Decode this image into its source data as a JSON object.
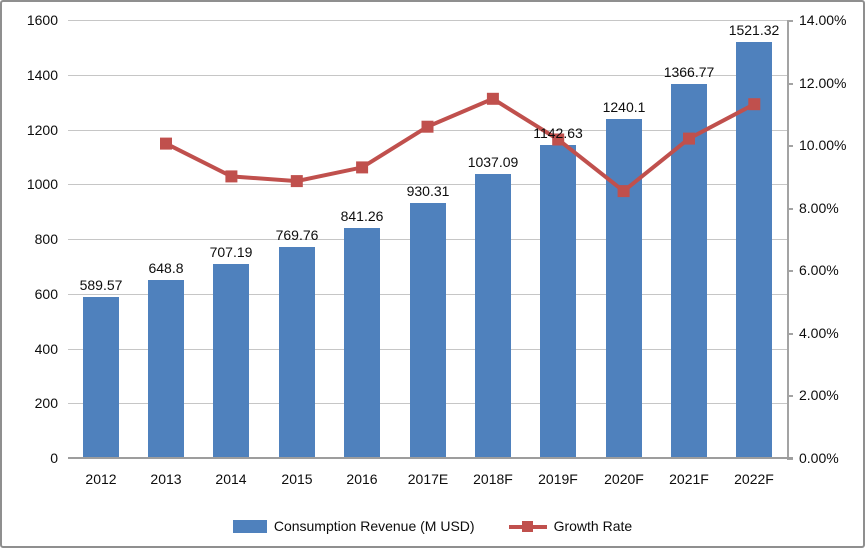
{
  "chart_data": {
    "type": "bar",
    "subtype": "bar-line-combo",
    "title": "",
    "categories": [
      "2012",
      "2013",
      "2014",
      "2015",
      "2016",
      "2017E",
      "2018F",
      "2019F",
      "2020F",
      "2021F",
      "2022F"
    ],
    "series": [
      {
        "name": "Consumption Revenue (M USD)",
        "type": "bar",
        "axis": "left",
        "color": "#4f81bd",
        "values": [
          589.57,
          648.8,
          707.19,
          769.76,
          841.26,
          930.31,
          1037.09,
          1142.63,
          1240.1,
          1366.77,
          1521.32
        ],
        "data_labels": [
          "589.57",
          "648.8",
          "707.19",
          "769.76",
          "841.26",
          "930.31",
          "1037.09",
          "1142.63",
          "1240.1",
          "1366.77",
          "1521.32"
        ]
      },
      {
        "name": "Growth Rate",
        "type": "line",
        "axis": "right",
        "color": "#c0504d",
        "values": [
          null,
          10.05,
          9.0,
          8.85,
          9.29,
          10.59,
          11.48,
          10.18,
          8.53,
          10.21,
          11.31
        ]
      }
    ],
    "left_axis": {
      "min": 0,
      "max": 1600,
      "step": 200,
      "tick_labels": [
        "0",
        "200",
        "400",
        "600",
        "800",
        "1000",
        "1200",
        "1400",
        "1600"
      ]
    },
    "right_axis": {
      "min": 0,
      "max": 14,
      "step": 2,
      "tick_labels": [
        "0.00%",
        "2.00%",
        "4.00%",
        "6.00%",
        "8.00%",
        "10.00%",
        "12.00%",
        "14.00%"
      ]
    },
    "grid": true,
    "gridline_color": "#c6c6c6",
    "axis_line_color": "#a3a3a3",
    "legend_position": "bottom"
  }
}
